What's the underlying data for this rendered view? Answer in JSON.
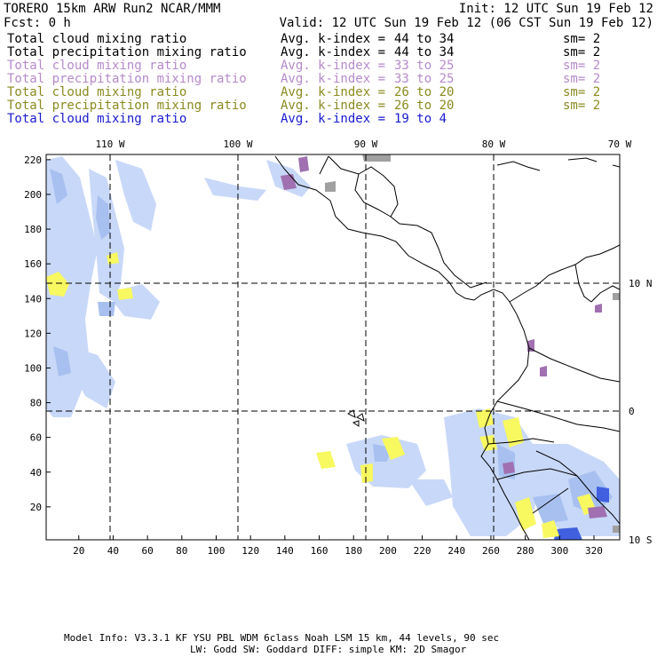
{
  "header": {
    "model": "TORERO  15km ARW   Run2     NCAR/MMM",
    "init": "Init: 12 UTC Sun 19 Feb 12",
    "fcst": "Fcst:    0 h",
    "valid": "Valid: 12 UTC Sun 19 Feb 12 (06 CST Sun 19 Feb 12)"
  },
  "legend_rows": [
    {
      "field": "Total cloud mixing ratio",
      "avg": "Avg. k-index =",
      "range": "44 to  34",
      "sm": "sm= 2",
      "color": "#000000"
    },
    {
      "field": "Total precipitation mixing ratio",
      "avg": "Avg. k-index =",
      "range": "44 to  34",
      "sm": "sm= 2",
      "color": "#000000"
    },
    {
      "field": "Total cloud mixing ratio",
      "avg": "Avg. k-index =",
      "range": "33 to  25",
      "sm": "sm= 2",
      "color": "#b58acb"
    },
    {
      "field": "Total precipitation mixing ratio",
      "avg": "Avg. k-index =",
      "range": "33 to  25",
      "sm": "sm= 2",
      "color": "#b58acb"
    },
    {
      "field": "Total cloud mixing ratio",
      "avg": "Avg. k-index =",
      "range": "26 to  20",
      "sm": "sm= 2",
      "color": "#8a8a20"
    },
    {
      "field": "Total precipitation mixing ratio",
      "avg": "Avg. k-index =",
      "range": "26 to  20",
      "sm": "sm= 2",
      "color": "#8a8a20"
    },
    {
      "field": "Total cloud mixing ratio",
      "avg": "Avg. k-index =",
      "range": "19 to   4",
      "sm": "",
      "color": "#1a1ad0"
    }
  ],
  "top_ticks": [
    "110 W",
    "100 W",
    "90 W",
    "80 W",
    "70 W"
  ],
  "right_ticks": [
    "10 N",
    "0",
    "10 S"
  ],
  "y_ticks": [
    "220",
    "200",
    "180",
    "160",
    "140",
    "120",
    "100",
    "80",
    "60",
    "40",
    "20"
  ],
  "x_ticks": [
    "20",
    "40",
    "60",
    "80",
    "100",
    "120",
    "140",
    "160",
    "180",
    "200",
    "220",
    "240",
    "260",
    "280",
    "300",
    "320"
  ],
  "footer": {
    "line1": "Model Info: V3.3.1   KF     YSU PBL  WDM 6class  Noah LSM  15 km,   44 levels,   90 sec",
    "line2": "LW: Godd SW: Goddard DIFF: simple KM: 2D Smagor"
  },
  "colors": {
    "light_blue": "#c8d8f8",
    "mid_blue": "#a8c0f0",
    "dark_blue": "#4060e0",
    "yellow": "#f8f860",
    "purple": "#a070b0",
    "gray": "#a0a0a0"
  }
}
